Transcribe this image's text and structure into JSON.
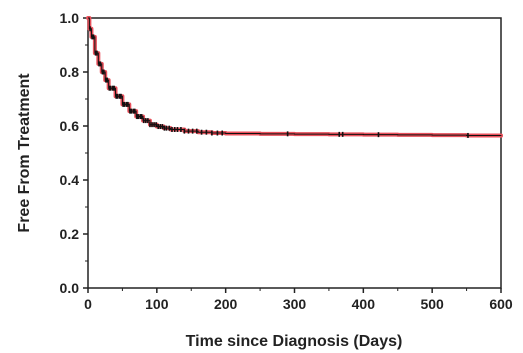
{
  "chart_data": {
    "type": "line",
    "title": "",
    "xlabel": "Time since Diagnosis (Days)",
    "ylabel": "Free From Treatment",
    "xlim": [
      0,
      600
    ],
    "ylim": [
      0,
      1.0
    ],
    "x_ticks": [
      0,
      100,
      200,
      300,
      400,
      500,
      600
    ],
    "y_ticks": [
      0.0,
      0.2,
      0.4,
      0.6,
      0.8,
      1.0
    ],
    "x_tick_labels": [
      "0",
      "100",
      "200",
      "300",
      "400",
      "500",
      "600"
    ],
    "y_tick_labels": [
      "0.0",
      "0.2",
      "0.4",
      "0.6",
      "0.8",
      "1.0"
    ],
    "grid": false,
    "series": [
      {
        "color": "#e8505b",
        "x": [
          0,
          2,
          5,
          10,
          15,
          20,
          25,
          30,
          40,
          50,
          60,
          70,
          80,
          90,
          100,
          110,
          120,
          140,
          160,
          180,
          200,
          250,
          300,
          350,
          400,
          450,
          500,
          550,
          600
        ],
        "y": [
          1.0,
          0.96,
          0.93,
          0.87,
          0.83,
          0.8,
          0.77,
          0.74,
          0.71,
          0.68,
          0.655,
          0.635,
          0.62,
          0.605,
          0.598,
          0.592,
          0.587,
          0.581,
          0.577,
          0.574,
          0.572,
          0.571,
          0.57,
          0.569,
          0.568,
          0.567,
          0.566,
          0.565,
          0.564
        ]
      }
    ],
    "censor_marks_x": [
      3,
      6,
      8,
      11,
      13,
      16,
      18,
      21,
      23,
      26,
      28,
      31,
      33,
      36,
      38,
      41,
      43,
      46,
      48,
      51,
      53,
      56,
      58,
      61,
      63,
      66,
      68,
      71,
      73,
      76,
      78,
      81,
      84,
      87,
      90,
      93,
      96,
      99,
      102,
      105,
      108,
      111,
      114,
      118,
      122,
      126,
      130,
      135,
      140,
      146,
      152,
      158,
      165,
      172,
      180,
      188,
      195,
      290,
      365,
      370,
      422,
      552
    ]
  }
}
